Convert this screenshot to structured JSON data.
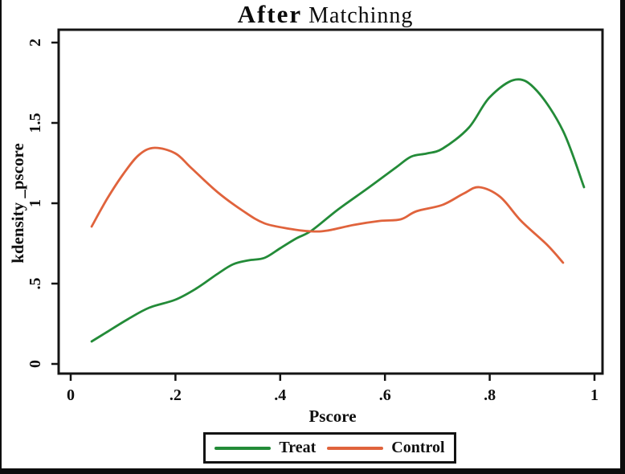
{
  "figure": {
    "title_bold": "After",
    "title_rest": "Matchinng",
    "frame_color": "#141414",
    "text_color": "#111111"
  },
  "chart_data": {
    "type": "line",
    "title": "After Matchinng",
    "xlabel": "Pscore",
    "ylabel": "kdensity _pscore",
    "xlim": [
      0,
      1
    ],
    "ylim": [
      0,
      2
    ],
    "x_ticks": [
      0,
      0.2,
      0.4,
      0.6,
      0.8,
      1
    ],
    "x_tick_labels": [
      "0",
      ".2",
      ".4",
      ".6",
      ".8",
      "1"
    ],
    "y_ticks": [
      0,
      0.5,
      1,
      1.5,
      2
    ],
    "y_tick_labels": [
      "0",
      ".5",
      "1",
      "1.5",
      "2"
    ],
    "grid": false,
    "legend_position": "bottom-center",
    "series": [
      {
        "name": "Treat",
        "color": "#238b38",
        "points": [
          [
            0.04,
            0.14
          ],
          [
            0.07,
            0.2
          ],
          [
            0.11,
            0.28
          ],
          [
            0.15,
            0.35
          ],
          [
            0.2,
            0.4
          ],
          [
            0.24,
            0.47
          ],
          [
            0.28,
            0.56
          ],
          [
            0.31,
            0.62
          ],
          [
            0.34,
            0.645
          ],
          [
            0.37,
            0.66
          ],
          [
            0.4,
            0.72
          ],
          [
            0.43,
            0.78
          ],
          [
            0.46,
            0.83
          ],
          [
            0.51,
            0.96
          ],
          [
            0.57,
            1.1
          ],
          [
            0.62,
            1.22
          ],
          [
            0.65,
            1.29
          ],
          [
            0.68,
            1.31
          ],
          [
            0.71,
            1.34
          ],
          [
            0.76,
            1.47
          ],
          [
            0.8,
            1.66
          ],
          [
            0.85,
            1.77
          ],
          [
            0.89,
            1.7
          ],
          [
            0.94,
            1.45
          ],
          [
            0.98,
            1.1
          ]
        ]
      },
      {
        "name": "Control",
        "color": "#e0633c",
        "points": [
          [
            0.04,
            0.855
          ],
          [
            0.07,
            1.03
          ],
          [
            0.1,
            1.18
          ],
          [
            0.13,
            1.3
          ],
          [
            0.16,
            1.345
          ],
          [
            0.2,
            1.31
          ],
          [
            0.23,
            1.22
          ],
          [
            0.28,
            1.07
          ],
          [
            0.33,
            0.95
          ],
          [
            0.37,
            0.875
          ],
          [
            0.42,
            0.84
          ],
          [
            0.46,
            0.825
          ],
          [
            0.49,
            0.83
          ],
          [
            0.54,
            0.865
          ],
          [
            0.59,
            0.89
          ],
          [
            0.63,
            0.9
          ],
          [
            0.66,
            0.95
          ],
          [
            0.71,
            0.99
          ],
          [
            0.75,
            1.06
          ],
          [
            0.78,
            1.1
          ],
          [
            0.82,
            1.04
          ],
          [
            0.86,
            0.89
          ],
          [
            0.91,
            0.74
          ],
          [
            0.94,
            0.63
          ]
        ]
      }
    ]
  }
}
